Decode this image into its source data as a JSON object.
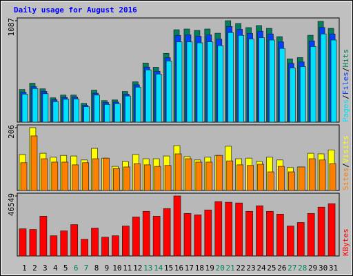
{
  "title": "Daily usage for August 2016",
  "legend_separator": "/",
  "chart_data": [
    {
      "type": "bar",
      "ylim": [
        0,
        1087
      ],
      "yticks": [
        1087
      ],
      "series": [
        {
          "name": "Hits",
          "color": "#00805c",
          "values": [
            350,
            417,
            357,
            261,
            290,
            290,
            201,
            342,
            231,
            238,
            328,
            432,
            633,
            588,
            737,
            990,
            998,
            983,
            998,
            953,
            1087,
            1057,
            1013,
            1035,
            1005,
            916,
            678,
            692,
            931,
            1080,
            1005
          ]
        },
        {
          "name": "Files",
          "color": "#0040ff",
          "values": [
            320,
            380,
            330,
            240,
            265,
            268,
            180,
            310,
            210,
            215,
            300,
            400,
            590,
            545,
            690,
            930,
            935,
            920,
            935,
            890,
            1025,
            995,
            950,
            975,
            945,
            860,
            630,
            645,
            870,
            1015,
            945
          ]
        },
        {
          "name": "Pages",
          "color": "#00e0ff",
          "values": [
            300,
            360,
            305,
            220,
            245,
            248,
            165,
            290,
            190,
            198,
            280,
            375,
            560,
            515,
            655,
            860,
            860,
            850,
            860,
            820,
            960,
            930,
            890,
            905,
            880,
            790,
            580,
            595,
            810,
            945,
            880
          ]
        }
      ]
    },
    {
      "type": "bar",
      "ylim": [
        0,
        206
      ],
      "yticks": [
        206
      ],
      "series": [
        {
          "name": "Visits",
          "color": "#ffff00",
          "values": [
            118,
            206,
            122,
            109,
            115,
            113,
            100,
            138,
            106,
            79,
            95,
            118,
            104,
            104,
            113,
            147,
            111,
            100,
            109,
            115,
            145,
            104,
            106,
            95,
            109,
            100,
            75,
            77,
            122,
            120,
            133
          ]
        },
        {
          "name": "Sites",
          "color": "#ff8000",
          "values": [
            91,
            179,
            104,
            93,
            93,
            84,
            91,
            104,
            106,
            72,
            77,
            88,
            84,
            79,
            82,
            120,
            104,
            93,
            93,
            115,
            97,
            84,
            82,
            86,
            61,
            79,
            61,
            77,
            104,
            100,
            88
          ]
        }
      ]
    },
    {
      "type": "bar",
      "ylim": [
        0,
        46549
      ],
      "yticks": [
        46549
      ],
      "categories": [
        "1",
        "2",
        "3",
        "4",
        "5",
        "6",
        "7",
        "8",
        "9",
        "10",
        "11",
        "12",
        "13",
        "14",
        "15",
        "16",
        "17",
        "18",
        "19",
        "20",
        "21",
        "22",
        "23",
        "24",
        "25",
        "26",
        "27",
        "28",
        "29",
        "30",
        "31"
      ],
      "category_colors": [
        "#000000",
        "#000000",
        "#000000",
        "#000000",
        "#000000",
        "#00805c",
        "#00805c",
        "#000000",
        "#000000",
        "#000000",
        "#000000",
        "#000000",
        "#00805c",
        "#00805c",
        "#000000",
        "#000000",
        "#000000",
        "#000000",
        "#000000",
        "#00805c",
        "#00805c",
        "#000000",
        "#000000",
        "#000000",
        "#000000",
        "#000000",
        "#00805c",
        "#00805c",
        "#000000",
        "#000000",
        "#000000"
      ],
      "series": [
        {
          "name": "KBytes",
          "color": "#ff0000",
          "values": [
            21103,
            20562,
            30841,
            15694,
            19480,
            24350,
            12989,
            21644,
            14612,
            15694,
            23268,
            30300,
            34628,
            30841,
            36792,
            46549,
            33005,
            31923,
            35710,
            42203,
            41662,
            41120,
            34628,
            38956,
            34628,
            32464,
            23268,
            25973,
            33005,
            37874,
            40580
          ]
        }
      ]
    }
  ]
}
